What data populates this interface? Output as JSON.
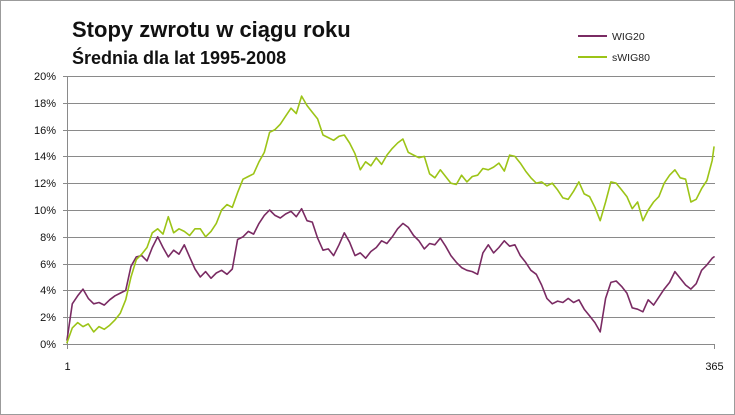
{
  "chart_data": {
    "type": "line",
    "title": "Stopy zwrotu w ciągu roku",
    "subtitle": "Średnia dla lat 1995-2008",
    "legend": "top-right",
    "grid": true,
    "xlim": [
      1,
      365
    ],
    "ylim": [
      0,
      20
    ],
    "xticks": [
      1,
      365
    ],
    "xtick_labels": [
      "1",
      "365"
    ],
    "yticks": [
      0,
      2,
      4,
      6,
      8,
      10,
      12,
      14,
      16,
      18,
      20
    ],
    "ytick_labels": [
      "0%",
      "2%",
      "4%",
      "6%",
      "8%",
      "10%",
      "12%",
      "14%",
      "16%",
      "18%",
      "20%"
    ],
    "x": [
      1,
      4,
      7,
      10,
      13,
      16,
      19,
      22,
      25,
      28,
      31,
      34,
      37,
      40,
      43,
      46,
      49,
      52,
      55,
      58,
      61,
      64,
      67,
      70,
      73,
      76,
      79,
      82,
      85,
      88,
      91,
      94,
      97,
      100,
      103,
      106,
      109,
      112,
      115,
      118,
      121,
      124,
      127,
      130,
      133,
      136,
      139,
      142,
      145,
      148,
      151,
      154,
      157,
      160,
      163,
      166,
      169,
      172,
      175,
      178,
      181,
      184,
      187,
      190,
      193,
      196,
      199,
      202,
      205,
      208,
      211,
      214,
      217,
      220,
      223,
      226,
      229,
      232,
      235,
      238,
      241,
      244,
      247,
      250,
      253,
      256,
      259,
      262,
      265,
      268,
      271,
      274,
      277,
      280,
      283,
      286,
      289,
      292,
      295,
      298,
      301,
      304,
      307,
      310,
      313,
      316,
      319,
      322,
      325,
      328,
      331,
      334,
      337,
      340,
      343,
      346,
      349,
      352,
      355,
      358,
      361,
      364,
      365
    ],
    "series": [
      {
        "name": "WIG20",
        "color": "#7a2b63",
        "values": [
          0.3,
          3.0,
          3.6,
          4.1,
          3.4,
          3.0,
          3.1,
          2.9,
          3.3,
          3.6,
          3.8,
          4.0,
          5.8,
          6.5,
          6.6,
          6.2,
          7.2,
          8.0,
          7.2,
          6.5,
          7.0,
          6.7,
          7.4,
          6.5,
          5.6,
          5.0,
          5.4,
          4.9,
          5.3,
          5.5,
          5.2,
          5.6,
          7.8,
          8.0,
          8.4,
          8.2,
          9.0,
          9.6,
          10.0,
          9.6,
          9.4,
          9.7,
          9.9,
          9.5,
          10.1,
          9.2,
          9.1,
          7.9,
          7.0,
          7.1,
          6.6,
          7.4,
          8.3,
          7.6,
          6.6,
          6.8,
          6.4,
          6.9,
          7.2,
          7.7,
          7.5,
          8.0,
          8.6,
          9.0,
          8.7,
          8.1,
          7.7,
          7.1,
          7.5,
          7.4,
          7.9,
          7.3,
          6.6,
          6.1,
          5.7,
          5.5,
          5.4,
          5.2,
          6.8,
          7.4,
          6.8,
          7.2,
          7.7,
          7.3,
          7.4,
          6.6,
          6.1,
          5.5,
          5.2,
          4.4,
          3.4,
          3.0,
          3.2,
          3.1,
          3.4,
          3.1,
          3.3,
          2.6,
          2.1,
          1.6,
          0.9,
          3.4,
          4.6,
          4.7,
          4.3,
          3.8,
          2.7,
          2.6,
          2.4,
          3.3,
          2.9,
          3.5,
          4.1,
          4.6,
          5.4,
          4.9,
          4.4,
          4.1,
          4.5,
          5.5,
          5.9,
          6.4,
          6.5
        ]
      },
      {
        "name": "sWIG80",
        "color": "#9cc417",
        "values": [
          0.1,
          1.2,
          1.6,
          1.3,
          1.5,
          0.9,
          1.3,
          1.1,
          1.4,
          1.8,
          2.3,
          3.3,
          5.0,
          6.3,
          6.7,
          7.2,
          8.3,
          8.6,
          8.2,
          9.5,
          8.3,
          8.6,
          8.4,
          8.1,
          8.6,
          8.6,
          8.0,
          8.4,
          9.0,
          10.0,
          10.4,
          10.2,
          11.3,
          12.3,
          12.5,
          12.7,
          13.6,
          14.3,
          15.8,
          16.0,
          16.4,
          17.0,
          17.6,
          17.2,
          18.5,
          17.8,
          17.3,
          16.8,
          15.6,
          15.4,
          15.2,
          15.5,
          15.6,
          15.0,
          14.2,
          13.0,
          13.6,
          13.3,
          13.9,
          13.4,
          14.1,
          14.6,
          15.0,
          15.3,
          14.3,
          14.1,
          13.9,
          14.0,
          12.7,
          12.4,
          13.0,
          12.5,
          12.0,
          11.9,
          12.6,
          12.1,
          12.5,
          12.6,
          13.1,
          13.0,
          13.2,
          13.5,
          12.9,
          14.1,
          14.0,
          13.5,
          12.9,
          12.4,
          12.0,
          12.1,
          11.8,
          12.0,
          11.5,
          10.9,
          10.8,
          11.4,
          12.1,
          11.2,
          11.0,
          10.2,
          9.2,
          10.6,
          12.1,
          12.0,
          11.5,
          11.0,
          10.1,
          10.6,
          9.2,
          10.0,
          10.6,
          11.0,
          12.0,
          12.6,
          13.0,
          12.4,
          12.3,
          10.6,
          10.8,
          11.6,
          12.2,
          13.7,
          14.7
        ]
      }
    ]
  }
}
